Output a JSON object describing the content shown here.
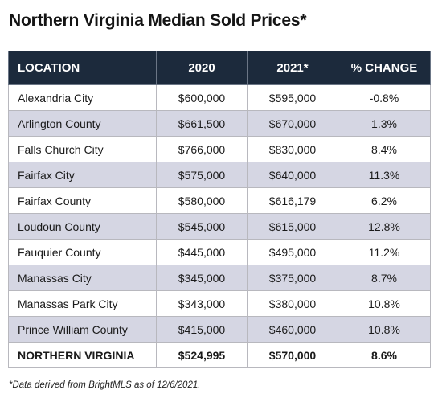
{
  "title": "Northern Virginia Median Sold Prices*",
  "chart_data": {
    "type": "table",
    "title": "Northern Virginia Median Sold Prices*",
    "columns": [
      "LOCATION",
      "2020",
      "2021*",
      "% CHANGE"
    ],
    "rows": [
      [
        "Alexandria City",
        "$600,000",
        "$595,000",
        "-0.8%"
      ],
      [
        "Arlington County",
        "$661,500",
        "$670,000",
        "1.3%"
      ],
      [
        "Falls Church City",
        "$766,000",
        "$830,000",
        "8.4%"
      ],
      [
        "Fairfax City",
        "$575,000",
        "$640,000",
        "11.3%"
      ],
      [
        "Fairfax County",
        "$580,000",
        "$616,179",
        "6.2%"
      ],
      [
        "Loudoun County",
        "$545,000",
        "$615,000",
        "12.8%"
      ],
      [
        "Fauquier County",
        "$445,000",
        "$495,000",
        "11.2%"
      ],
      [
        "Manassas City",
        "$345,000",
        "$375,000",
        "8.7%"
      ],
      [
        "Manassas Park City",
        "$343,000",
        "$380,000",
        "10.8%"
      ],
      [
        "Prince William County",
        "$415,000",
        "$460,000",
        "10.8%"
      ]
    ],
    "total_row": [
      "NORTHERN VIRGINIA",
      "$524,995",
      "$570,000",
      "8.6%"
    ]
  },
  "colors": {
    "header_bg": "#1c2a3c",
    "stripe_bg": "#d5d6e3"
  },
  "footnote": "*Data derived from BrightMLS as of 12/6/2021."
}
